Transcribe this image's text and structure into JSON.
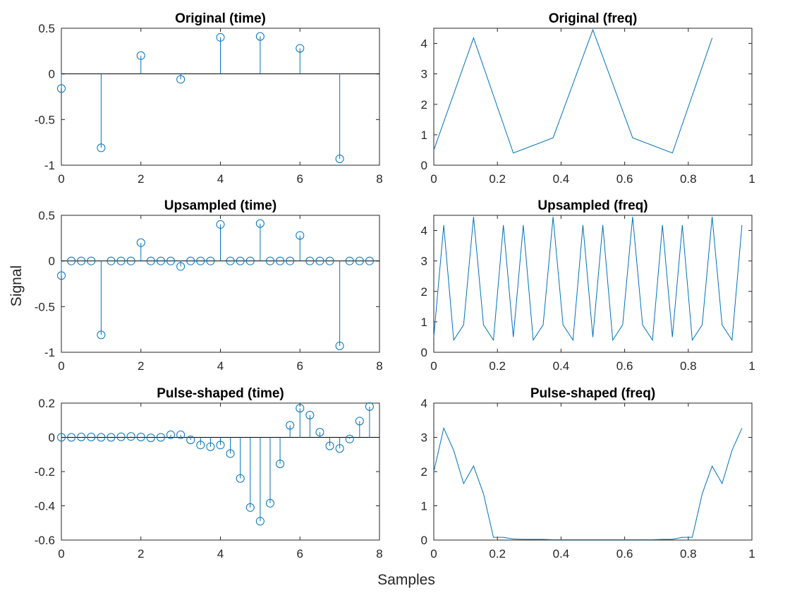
{
  "figure": {
    "xlabel": "Samples",
    "ylabel": "Signal",
    "line_color": "#0072BD",
    "axis_color": "#262626",
    "background": "#ffffff"
  },
  "chart_data": [
    {
      "type": "stem",
      "title": "Original (time)",
      "xlim": [
        0,
        8
      ],
      "ylim": [
        -1,
        0.5
      ],
      "xticks": [
        0,
        2,
        4,
        6,
        8
      ],
      "xticklabels": [
        "0",
        "2",
        "4",
        "6",
        "8"
      ],
      "yticks": [
        -1,
        -0.5,
        0,
        0.5
      ],
      "yticklabels": [
        "-1",
        "-0.5",
        "0",
        "0.5"
      ],
      "baseline": 0,
      "x": [
        0,
        1,
        2,
        3,
        4,
        5,
        6,
        7
      ],
      "y": [
        -0.16,
        -0.81,
        0.2,
        -0.06,
        0.4,
        0.41,
        0.28,
        -0.93
      ]
    },
    {
      "type": "line",
      "title": "Original (freq)",
      "xlim": [
        0,
        1
      ],
      "ylim": [
        0,
        4.5
      ],
      "xticks": [
        0,
        0.2,
        0.4,
        0.6,
        0.8,
        1
      ],
      "xticklabels": [
        "0",
        "0.2",
        "0.4",
        "0.6",
        "0.8",
        "1"
      ],
      "yticks": [
        0,
        1,
        2,
        3,
        4
      ],
      "yticklabels": [
        "0",
        "1",
        "2",
        "3",
        "4"
      ],
      "x": [
        0,
        0.125,
        0.25,
        0.375,
        0.5,
        0.625,
        0.75,
        0.875
      ],
      "y": [
        0.5,
        4.18,
        0.4,
        0.9,
        4.45,
        0.9,
        0.4,
        4.18
      ]
    },
    {
      "type": "stem",
      "title": "Upsampled (time)",
      "xlim": [
        0,
        8
      ],
      "ylim": [
        -1,
        0.5
      ],
      "xticks": [
        0,
        2,
        4,
        6,
        8
      ],
      "xticklabels": [
        "0",
        "2",
        "4",
        "6",
        "8"
      ],
      "yticks": [
        -1,
        -0.5,
        0,
        0.5
      ],
      "yticklabels": [
        "-1",
        "-0.5",
        "0",
        "0.5"
      ],
      "baseline": 0,
      "x": [
        0,
        0.25,
        0.5,
        0.75,
        1,
        1.25,
        1.5,
        1.75,
        2,
        2.25,
        2.5,
        2.75,
        3,
        3.25,
        3.5,
        3.75,
        4,
        4.25,
        4.5,
        4.75,
        5,
        5.25,
        5.5,
        5.75,
        6,
        6.25,
        6.5,
        6.75,
        7,
        7.25,
        7.5,
        7.75
      ],
      "y": [
        -0.16,
        0,
        0,
        0,
        -0.81,
        0,
        0,
        0,
        0.2,
        0,
        0,
        0,
        -0.06,
        0,
        0,
        0,
        0.4,
        0,
        0,
        0,
        0.41,
        0,
        0,
        0,
        0.28,
        0,
        0,
        0,
        -0.93,
        0,
        0,
        0
      ]
    },
    {
      "type": "line",
      "title": "Upsampled (freq)",
      "xlim": [
        0,
        1
      ],
      "ylim": [
        0,
        4.5
      ],
      "xticks": [
        0,
        0.2,
        0.4,
        0.6,
        0.8,
        1
      ],
      "xticklabels": [
        "0",
        "0.2",
        "0.4",
        "0.6",
        "0.8",
        "1"
      ],
      "yticks": [
        0,
        1,
        2,
        3,
        4
      ],
      "yticklabels": [
        "0",
        "1",
        "2",
        "3",
        "4"
      ],
      "x": [
        0,
        0.03125,
        0.0625,
        0.09375,
        0.125,
        0.15625,
        0.1875,
        0.21875,
        0.25,
        0.28125,
        0.3125,
        0.34375,
        0.375,
        0.40625,
        0.4375,
        0.46875,
        0.5,
        0.53125,
        0.5625,
        0.59375,
        0.625,
        0.65625,
        0.6875,
        0.71875,
        0.75,
        0.78125,
        0.8125,
        0.84375,
        0.875,
        0.90625,
        0.9375,
        0.96875
      ],
      "y": [
        0.5,
        4.18,
        0.4,
        0.9,
        4.45,
        0.9,
        0.4,
        4.18,
        0.5,
        4.18,
        0.4,
        0.9,
        4.45,
        0.9,
        0.4,
        4.18,
        0.5,
        4.18,
        0.4,
        0.9,
        4.45,
        0.9,
        0.4,
        4.18,
        0.5,
        4.18,
        0.4,
        0.9,
        4.45,
        0.9,
        0.4,
        4.18
      ]
    },
    {
      "type": "stem",
      "title": "Pulse-shaped (time)",
      "xlim": [
        0,
        8
      ],
      "ylim": [
        -0.6,
        0.2
      ],
      "xticks": [
        0,
        2,
        4,
        6,
        8
      ],
      "xticklabels": [
        "0",
        "2",
        "4",
        "6",
        "8"
      ],
      "yticks": [
        -0.6,
        -0.4,
        -0.2,
        0,
        0.2
      ],
      "yticklabels": [
        "-0.6",
        "-0.4",
        "-0.2",
        "0",
        "0.2"
      ],
      "baseline": 0,
      "x": [
        0,
        0.25,
        0.5,
        0.75,
        1,
        1.25,
        1.5,
        1.75,
        2,
        2.25,
        2.5,
        2.75,
        3,
        3.25,
        3.5,
        3.75,
        4,
        4.25,
        4.5,
        4.75,
        5,
        5.25,
        5.5,
        5.75,
        6,
        6.25,
        6.5,
        6.75,
        7,
        7.25,
        7.5,
        7.75
      ],
      "y": [
        0,
        0,
        0.002,
        0.002,
        0,
        0,
        0.003,
        0.005,
        0.002,
        -0.003,
        0,
        0.015,
        0.015,
        -0.015,
        -0.045,
        -0.055,
        -0.045,
        -0.095,
        -0.24,
        -0.41,
        -0.49,
        -0.385,
        -0.155,
        0.07,
        0.17,
        0.13,
        0.03,
        -0.05,
        -0.065,
        -0.01,
        0.095,
        0.18
      ]
    },
    {
      "type": "line",
      "title": "Pulse-shaped (freq)",
      "xlim": [
        0,
        1
      ],
      "ylim": [
        0,
        4
      ],
      "xticks": [
        0,
        0.2,
        0.4,
        0.6,
        0.8,
        1
      ],
      "xticklabels": [
        "0",
        "0.2",
        "0.4",
        "0.6",
        "0.8",
        "1"
      ],
      "yticks": [
        0,
        1,
        2,
        3,
        4
      ],
      "yticklabels": [
        "0",
        "1",
        "2",
        "3",
        "4"
      ],
      "x": [
        0,
        0.03125,
        0.0625,
        0.09375,
        0.125,
        0.15625,
        0.1875,
        0.21875,
        0.25,
        0.28125,
        0.3125,
        0.34375,
        0.375,
        0.40625,
        0.4375,
        0.46875,
        0.5,
        0.53125,
        0.5625,
        0.59375,
        0.625,
        0.65625,
        0.6875,
        0.71875,
        0.75,
        0.78125,
        0.8125,
        0.84375,
        0.875,
        0.90625,
        0.9375,
        0.96875
      ],
      "y": [
        2.0,
        3.27,
        2.62,
        1.65,
        2.16,
        1.35,
        0.08,
        0.08,
        0.03,
        0.02,
        0.02,
        0.02,
        0.01,
        0.01,
        0.01,
        0.01,
        0.01,
        0.01,
        0.01,
        0.01,
        0.01,
        0.01,
        0.01,
        0.02,
        0.02,
        0.08,
        0.08,
        1.35,
        2.16,
        1.65,
        2.62,
        3.27
      ]
    }
  ]
}
